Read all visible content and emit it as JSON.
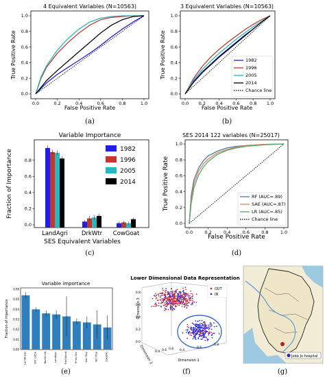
{
  "colors": {
    "c1982": "#1f1fe6",
    "c1996": "#c0392b",
    "c2005": "#2bb6c0",
    "c2014": "#000000",
    "chance": "#000000",
    "rf": "#4c72b0",
    "sae": "#dd8452",
    "lr": "#55a868",
    "barBlue": "#2f7fbf",
    "in": "#2b2bd6",
    "out": "#d62b2b"
  },
  "captions": {
    "a": "(a)",
    "b": "(b)",
    "c": "(c)",
    "d": "(d)",
    "e": "(e)",
    "f": "(f)",
    "g": "(g)"
  },
  "chart_data": [
    {
      "id": "a",
      "type": "line",
      "title": "4 Equivalent Variables (N=10563)",
      "xlabel": "False Positive Rate",
      "ylabel": "True Positive Rate",
      "xlim": [
        0,
        1
      ],
      "ylim": [
        0,
        1
      ],
      "xticks": [
        "0.0",
        "0.2",
        "0.4",
        "0.6",
        "0.8",
        "1.0"
      ],
      "yticks": [
        "0.0",
        "0.2",
        "0.4",
        "0.6",
        "0.8",
        "1.0"
      ],
      "legend": "none",
      "series": [
        {
          "name": "1982",
          "color_key": "c1982",
          "x": [
            0,
            0.1,
            0.2,
            0.3,
            0.4,
            0.5,
            0.6,
            0.7,
            0.8,
            0.9,
            1
          ],
          "y": [
            0,
            0.14,
            0.25,
            0.34,
            0.43,
            0.52,
            0.62,
            0.73,
            0.83,
            0.92,
            1
          ]
        },
        {
          "name": "1996",
          "color_key": "c1996",
          "x": [
            0,
            0.05,
            0.1,
            0.2,
            0.3,
            0.4,
            0.5,
            0.6,
            0.7,
            0.8,
            0.9,
            1
          ],
          "y": [
            0,
            0.2,
            0.34,
            0.52,
            0.66,
            0.78,
            0.88,
            0.95,
            0.98,
            0.99,
            1,
            1
          ]
        },
        {
          "name": "2005",
          "color_key": "c2005",
          "x": [
            0,
            0.05,
            0.1,
            0.2,
            0.3,
            0.4,
            0.5,
            0.6,
            0.7,
            0.8,
            0.9,
            1
          ],
          "y": [
            0,
            0.22,
            0.36,
            0.56,
            0.71,
            0.83,
            0.92,
            0.97,
            0.99,
            1,
            1,
            1
          ]
        },
        {
          "name": "2014",
          "color_key": "c2014",
          "x": [
            0,
            0.1,
            0.2,
            0.3,
            0.4,
            0.5,
            0.6,
            0.7,
            0.8,
            0.9,
            1
          ],
          "y": [
            0,
            0.17,
            0.3,
            0.42,
            0.54,
            0.66,
            0.78,
            0.88,
            0.95,
            0.99,
            1
          ]
        },
        {
          "name": "Chance line",
          "color_key": "chance",
          "dashed": true,
          "x": [
            0,
            1
          ],
          "y": [
            0,
            1
          ]
        }
      ]
    },
    {
      "id": "b",
      "type": "line",
      "title": "3 Equivalent Variables (N=10563)",
      "xlabel": "False Positive Rate",
      "ylabel": "True Positive Rate",
      "xlim": [
        0,
        1
      ],
      "ylim": [
        0,
        1
      ],
      "xticks": [
        "0.0",
        "0.2",
        "0.4",
        "0.6",
        "0.8",
        "1.0"
      ],
      "yticks": [
        "0.0",
        "0.2",
        "0.4",
        "0.6",
        "0.8",
        "1.0"
      ],
      "legend": "lower-right",
      "series": [
        {
          "name": "1982",
          "color_key": "c1982",
          "x": [
            0,
            0.1,
            0.2,
            0.3,
            0.4,
            0.5,
            0.6,
            0.7,
            0.8,
            0.9,
            1
          ],
          "y": [
            0,
            0.16,
            0.28,
            0.38,
            0.48,
            0.57,
            0.66,
            0.75,
            0.83,
            0.92,
            1
          ]
        },
        {
          "name": "1996",
          "color_key": "c1996",
          "x": [
            0,
            0.1,
            0.2,
            0.3,
            0.4,
            0.5,
            0.6,
            0.7,
            0.8,
            0.9,
            1
          ],
          "y": [
            0,
            0.2,
            0.35,
            0.47,
            0.57,
            0.66,
            0.74,
            0.82,
            0.89,
            0.95,
            1
          ]
        },
        {
          "name": "2005",
          "color_key": "c2005",
          "x": [
            0,
            0.1,
            0.2,
            0.3,
            0.4,
            0.5,
            0.6,
            0.7,
            0.8,
            0.9,
            1
          ],
          "y": [
            0,
            0.18,
            0.31,
            0.42,
            0.52,
            0.61,
            0.7,
            0.78,
            0.86,
            0.93,
            1
          ]
        },
        {
          "name": "2014",
          "color_key": "c2014",
          "x": [
            0,
            0.1,
            0.2,
            0.3,
            0.4,
            0.5,
            0.6,
            0.7,
            0.8,
            0.9,
            1
          ],
          "y": [
            0,
            0.15,
            0.27,
            0.37,
            0.47,
            0.56,
            0.65,
            0.74,
            0.83,
            0.92,
            1
          ]
        },
        {
          "name": "Chance line",
          "color_key": "chance",
          "dashed": true,
          "x": [
            0,
            1
          ],
          "y": [
            0,
            1
          ]
        }
      ]
    },
    {
      "id": "c",
      "type": "bar",
      "title": "Variable Importance",
      "xlabel": "SES Equivalent Variables",
      "ylabel": "Fraction of Importance",
      "ylim": [
        0,
        1
      ],
      "yticks": [
        "0.0",
        "0.2",
        "0.4",
        "0.6",
        "0.8"
      ],
      "categories": [
        "LandAgri",
        "DrkWtr",
        "CowGoat"
      ],
      "legend": "upper-right",
      "series": [
        {
          "name": "1982",
          "color_key": "c1982",
          "values": [
            0.95,
            0.04,
            0.02
          ],
          "err": [
            0.03,
            0.02,
            0.02
          ]
        },
        {
          "name": "1996",
          "color_key": "c1996",
          "values": [
            0.9,
            0.08,
            0.03
          ],
          "err": [
            0.03,
            0.03,
            0.02
          ]
        },
        {
          "name": "2005",
          "color_key": "c2005",
          "values": [
            0.89,
            0.09,
            0.02
          ],
          "err": [
            0.03,
            0.03,
            0.02
          ]
        },
        {
          "name": "2014",
          "color_key": "c2014",
          "values": [
            0.82,
            0.11,
            0.07
          ],
          "err": [
            0.03,
            0.03,
            0.02
          ]
        }
      ]
    },
    {
      "id": "d",
      "type": "line",
      "title": "SES 2014 122 variables (N=25017)",
      "xlabel": "False Positive Rate",
      "ylabel": "True Positive Rate",
      "xlim": [
        0,
        1
      ],
      "ylim": [
        0,
        1
      ],
      "xticks": [
        "0.0",
        "0.2",
        "0.4",
        "0.6",
        "0.8",
        "1.0"
      ],
      "yticks": [
        "0.0",
        "0.2",
        "0.4",
        "0.6",
        "0.8",
        "1.0"
      ],
      "legend": "lower-right",
      "series": [
        {
          "name": "RF (AUC=.89)",
          "color_key": "rf",
          "x": [
            0,
            0.02,
            0.05,
            0.1,
            0.15,
            0.2,
            0.3,
            0.4,
            0.5,
            0.6,
            0.8,
            1
          ],
          "y": [
            0,
            0.35,
            0.55,
            0.7,
            0.79,
            0.85,
            0.91,
            0.95,
            0.97,
            0.98,
            0.995,
            1
          ]
        },
        {
          "name": "SAE (AUC=.87)",
          "color_key": "sae",
          "x": [
            0,
            0.02,
            0.05,
            0.1,
            0.15,
            0.2,
            0.3,
            0.4,
            0.5,
            0.6,
            0.8,
            1
          ],
          "y": [
            0,
            0.3,
            0.5,
            0.66,
            0.75,
            0.81,
            0.89,
            0.93,
            0.96,
            0.98,
            0.995,
            1
          ]
        },
        {
          "name": "LR (AUC=.85)",
          "color_key": "lr",
          "x": [
            0,
            0.02,
            0.05,
            0.1,
            0.15,
            0.2,
            0.3,
            0.4,
            0.5,
            0.6,
            0.8,
            1
          ],
          "y": [
            0,
            0.25,
            0.45,
            0.61,
            0.71,
            0.78,
            0.87,
            0.92,
            0.95,
            0.97,
            0.99,
            1
          ]
        },
        {
          "name": "Chance line",
          "color_key": "chance",
          "dashed": true,
          "x": [
            0,
            1
          ],
          "y": [
            0,
            1
          ]
        }
      ]
    },
    {
      "id": "e",
      "type": "bar",
      "title": "Variable importance",
      "ylabel": "Fraction of importance",
      "ylim": [
        0,
        0.06
      ],
      "yticks": [
        "0.00",
        "0.01",
        "0.02",
        "0.03",
        "0.04",
        "0.05",
        "0.06"
      ],
      "categories": [
        "LandAreas",
        "Wtr cattle",
        "NumChild",
        "LandAgri",
        "Fuel Wood",
        "Prnts Occ",
        "Wtr Tbty",
        "Wtr Pipe",
        "ZakatHs"
      ],
      "values": [
        0.054,
        0.04,
        0.036,
        0.035,
        0.033,
        0.028,
        0.027,
        0.025,
        0.022
      ],
      "err": [
        0.003,
        0.002,
        0.003,
        0.004,
        0.02,
        0.003,
        0.006,
        0.014,
        0.012
      ]
    },
    {
      "id": "f",
      "type": "scatter",
      "title": "Lower Dimensional Data Representation",
      "xlabel": "Dimension 1",
      "ylabel": "Dimension 2",
      "zlabel": "Dimension 3",
      "xticks": [
        "0.4",
        "0.6",
        "0.8"
      ],
      "yticks": [
        "0.4",
        "0.6",
        "0.8"
      ],
      "zticks": [
        "0.0",
        "0.2",
        "0.4",
        "0.6",
        "0.8"
      ],
      "legend": "upper-right",
      "series": [
        {
          "name": "OUT",
          "color_key": "out"
        },
        {
          "name": "IN",
          "color_key": "in"
        }
      ]
    }
  ],
  "map": {
    "label": "Jobb Jo hospital"
  }
}
